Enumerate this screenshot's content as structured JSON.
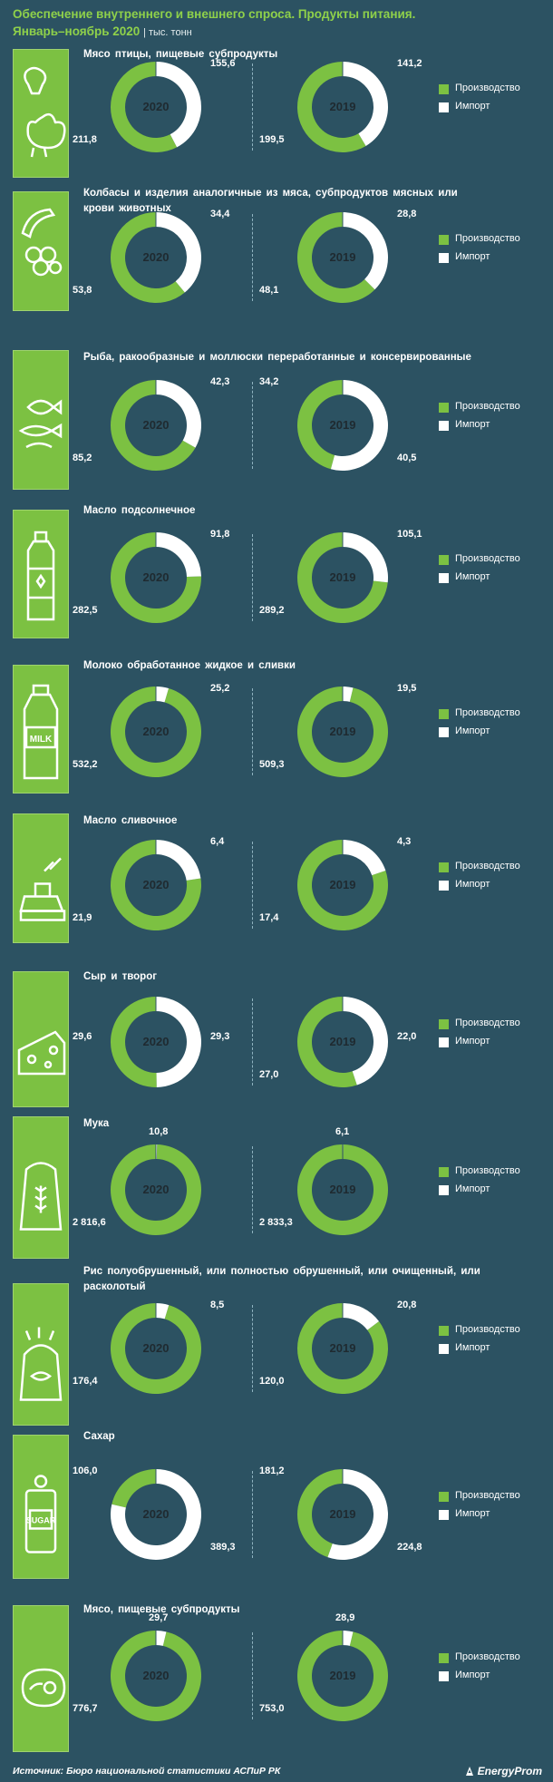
{
  "header": {
    "title_line1": "Обеспечение внутреннего и внешнего спроса. Продукты питания.",
    "title_line2": "Январь–ноябрь 2020",
    "units": "| тыс. тонн"
  },
  "legend": {
    "production": "Производство",
    "import": "Импорт"
  },
  "colors": {
    "background": "#2c5262",
    "production": "#7cc142",
    "import": "#ffffff",
    "title": "#8fd14a"
  },
  "sections": [
    {
      "title": "Мясо птицы, пищевые субпродукты",
      "icon": "poultry-icon"
    },
    {
      "title": "Колбасы и изделия аналогичные из мяса, субпродуктов мясных или крови животных",
      "icon": "sausage-icon"
    },
    {
      "title": "Рыба, ракообразные и моллюски переработанные и консервированные",
      "icon": "fish-icon"
    },
    {
      "title": "Масло подсолнечное",
      "icon": "oil-bottle-icon"
    },
    {
      "title": "Молоко обработанное жидкое и сливки",
      "icon": "milk-bottle-icon"
    },
    {
      "title": "Масло сливочное",
      "icon": "butter-icon"
    },
    {
      "title": "Сыр и творог",
      "icon": "cheese-icon"
    },
    {
      "title": "Мука",
      "icon": "flour-sack-icon"
    },
    {
      "title": "Рис полуобрушенный, или полностью обрушенный, или очищенный, или расколотый",
      "icon": "rice-sack-icon"
    },
    {
      "title": "Сахар",
      "icon": "sugar-jar-icon"
    },
    {
      "title": "Мясо, пищевые субпродукты",
      "icon": "steak-icon"
    }
  ],
  "chart_data": {
    "type": "pie",
    "variant": "donut",
    "series_names": [
      "Производство",
      "Импорт"
    ],
    "charts": [
      {
        "section": "Мясо птицы, пищевые субпродукты",
        "year": "2020",
        "production": 211.8,
        "import": 155.6,
        "labels": {
          "production": "211,8",
          "import": "155,6"
        }
      },
      {
        "section": "Мясо птицы, пищевые субпродукты",
        "year": "2019",
        "production": 199.5,
        "import": 141.2,
        "labels": {
          "production": "199,5",
          "import": "141,2"
        }
      },
      {
        "section": "Колбасы и изделия аналогичные из мяса, субпродуктов мясных или крови животных",
        "year": "2020",
        "production": 53.8,
        "import": 34.4,
        "labels": {
          "production": "53,8",
          "import": "34,4"
        }
      },
      {
        "section": "Колбасы и изделия аналогичные из мяса, субпродуктов мясных или крови животных",
        "year": "2019",
        "production": 48.1,
        "import": 28.8,
        "labels": {
          "production": "48,1",
          "import": "28,8"
        }
      },
      {
        "section": "Рыба, ракообразные и моллюски переработанные и консервированные",
        "year": "2020",
        "production": 85.2,
        "import": 42.3,
        "labels": {
          "production": "85,2",
          "import": "42,3"
        }
      },
      {
        "section": "Рыба, ракообразные и моллюски переработанные и консервированные",
        "year": "2019",
        "production": 34.2,
        "import": 40.5,
        "labels": {
          "production": "34,2",
          "import": "40,5"
        }
      },
      {
        "section": "Масло подсолнечное",
        "year": "2020",
        "production": 282.5,
        "import": 91.8,
        "labels": {
          "production": "282,5",
          "import": "91,8"
        }
      },
      {
        "section": "Масло подсолнечное",
        "year": "2019",
        "production": 289.2,
        "import": 105.1,
        "labels": {
          "production": "289,2",
          "import": "105,1"
        }
      },
      {
        "section": "Молоко обработанное жидкое и сливки",
        "year": "2020",
        "production": 532.2,
        "import": 25.2,
        "labels": {
          "production": "532,2",
          "import": "25,2"
        }
      },
      {
        "section": "Молоко обработанное жидкое и сливки",
        "year": "2019",
        "production": 509.3,
        "import": 19.5,
        "labels": {
          "production": "509,3",
          "import": "19,5"
        }
      },
      {
        "section": "Масло сливочное",
        "year": "2020",
        "production": 21.9,
        "import": 6.4,
        "labels": {
          "production": "21,9",
          "import": "6,4"
        }
      },
      {
        "section": "Масло сливочное",
        "year": "2019",
        "production": 17.4,
        "import": 4.3,
        "labels": {
          "production": "17,4",
          "import": "4,3"
        }
      },
      {
        "section": "Сыр и творог",
        "year": "2020",
        "production": 29.6,
        "import": 29.3,
        "labels": {
          "production": "29,6",
          "import": "29,3"
        }
      },
      {
        "section": "Сыр и творог",
        "year": "2019",
        "production": 27.0,
        "import": 22.0,
        "labels": {
          "production": "27,0",
          "import": "22,0"
        }
      },
      {
        "section": "Мука",
        "year": "2020",
        "production": 2816.6,
        "import": 10.8,
        "labels": {
          "production": "2 816,6",
          "import": "10,8"
        }
      },
      {
        "section": "Мука",
        "year": "2019",
        "production": 2833.3,
        "import": 6.1,
        "labels": {
          "production": "2 833,3",
          "import": "6,1"
        }
      },
      {
        "section": "Рис полуобрушенный, или полностью обрушенный, или очищенный, или расколотый",
        "year": "2020",
        "production": 176.4,
        "import": 8.5,
        "labels": {
          "production": "176,4",
          "import": "8,5"
        }
      },
      {
        "section": "Рис полуобрушенный, или полностью обрушенный, или очищенный, или расколотый",
        "year": "2019",
        "production": 120.0,
        "import": 20.8,
        "labels": {
          "production": "120,0",
          "import": "20,8"
        }
      },
      {
        "section": "Сахар",
        "year": "2020",
        "production": 106.0,
        "import": 389.3,
        "labels": {
          "production": "106,0",
          "import": "389,3"
        }
      },
      {
        "section": "Сахар",
        "year": "2019",
        "production": 181.2,
        "import": 224.8,
        "labels": {
          "production": "181,2",
          "import": "224,8"
        }
      },
      {
        "section": "Мясо, пищевые субпродукты",
        "year": "2020",
        "production": 776.7,
        "import": 29.7,
        "labels": {
          "production": "776,7",
          "import": "29,7"
        }
      },
      {
        "section": "Мясо, пищевые субпродукты",
        "year": "2019",
        "production": 753.0,
        "import": 28.9,
        "labels": {
          "production": "753,0",
          "import": "28,9"
        }
      }
    ]
  },
  "footer": {
    "source": "Источник: Бюро национальной статистики АСПиР РК",
    "logo": "EnergyProm"
  }
}
